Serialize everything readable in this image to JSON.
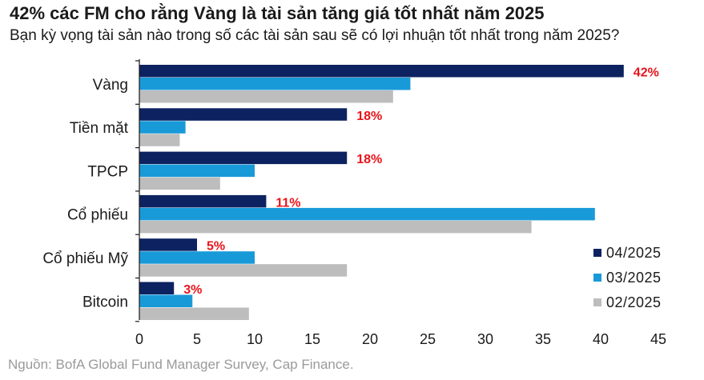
{
  "title": "42% các FM cho rằng Vàng là tài sản tăng giá tốt nhất năm 2025",
  "subtitle": "Bạn kỳ vọng tài sản nào trong số các tài sản sau sẽ có lợi nhuận tốt nhất trong năm 2025?",
  "source": "Nguồn: BofA Global Fund Manager Survey, Cap Finance.",
  "colors": {
    "series_04_2025": "#0d2260",
    "series_03_2025": "#199ad8",
    "series_02_2025": "#bdbdbd",
    "data_label": "#e8141b",
    "axis": "#1a1a1a"
  },
  "chart_data": {
    "type": "bar",
    "orientation": "horizontal",
    "title": "42% các FM cho rằng Vàng là tài sản tăng giá tốt nhất năm 2025",
    "subtitle": "Bạn kỳ vọng tài sản nào trong số các tài sản sau sẽ có lợi nhuận tốt nhất trong năm 2025?",
    "xlabel": "",
    "ylabel": "",
    "xlim": [
      0,
      45
    ],
    "xticks": [
      0,
      5,
      10,
      15,
      20,
      25,
      30,
      35,
      40,
      45
    ],
    "grid": false,
    "legend_position": "bottom-right",
    "categories": [
      "Vàng",
      "Tiền mặt",
      "TPCP",
      "Cổ phiếu",
      "Cổ phiếu Mỹ",
      "Bitcoin"
    ],
    "series": [
      {
        "name": "04/2025",
        "values": [
          42,
          18,
          18,
          11,
          5,
          3
        ],
        "data_labels": [
          "42%",
          "18%",
          "18%",
          "11%",
          "5%",
          "3%"
        ]
      },
      {
        "name": "03/2025",
        "values": [
          23.5,
          4,
          10,
          39.5,
          10,
          4.6
        ]
      },
      {
        "name": "02/2025",
        "values": [
          22,
          3.5,
          7,
          34,
          18,
          9.5
        ]
      }
    ]
  }
}
